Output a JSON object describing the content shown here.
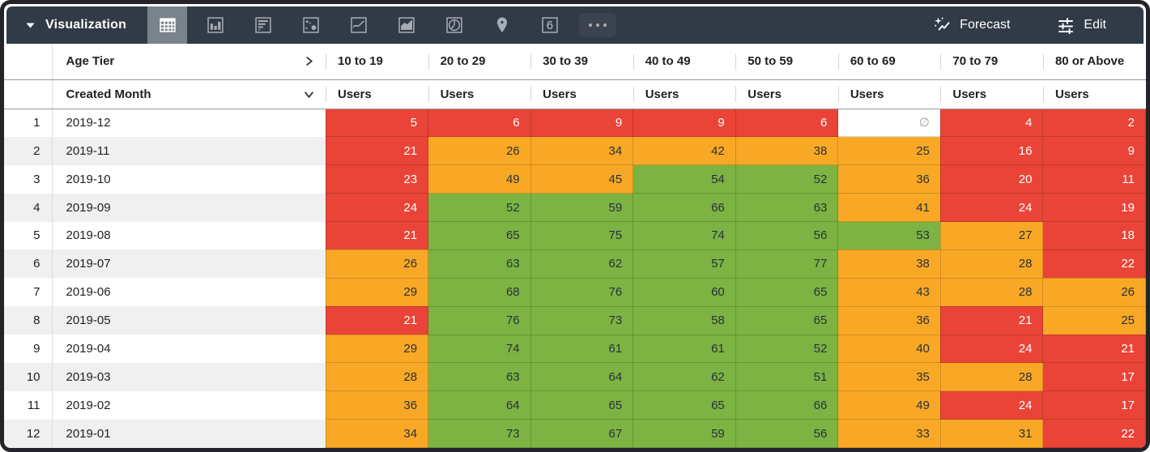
{
  "toolbar": {
    "caret": "▼",
    "title": "Visualization",
    "viz_types": [
      {
        "name": "table",
        "selected": true
      },
      {
        "name": "column-chart",
        "selected": false
      },
      {
        "name": "bar-chart",
        "selected": false
      },
      {
        "name": "scatter",
        "selected": false
      },
      {
        "name": "line-chart",
        "selected": false
      },
      {
        "name": "area-chart",
        "selected": false
      },
      {
        "name": "pie-chart",
        "selected": false
      },
      {
        "name": "map",
        "selected": false
      },
      {
        "name": "single-value",
        "selected": false,
        "glyph": "6"
      },
      {
        "name": "more",
        "selected": false
      }
    ],
    "forecast_label": "Forecast",
    "edit_label": "Edit"
  },
  "table": {
    "pivot_field": "Age Tier",
    "row_field": "Created Month",
    "measure": "Users",
    "null_symbol": "∅",
    "columns": [
      "10 to 19",
      "20 to 29",
      "30 to 39",
      "40 to 49",
      "50 to 59",
      "60 to 69",
      "70 to 79",
      "80 or Above"
    ],
    "rows": [
      {
        "index": "1",
        "month": "2019-12",
        "values": [
          "5",
          "6",
          "9",
          "9",
          "6",
          "∅",
          "4",
          "2"
        ],
        "levels": [
          "red",
          "red",
          "red",
          "red",
          "red",
          "null",
          "red",
          "red"
        ]
      },
      {
        "index": "2",
        "month": "2019-11",
        "values": [
          "21",
          "26",
          "34",
          "42",
          "38",
          "25",
          "16",
          "9"
        ],
        "levels": [
          "red",
          "orange",
          "orange",
          "orange",
          "orange",
          "orange",
          "red",
          "red"
        ]
      },
      {
        "index": "3",
        "month": "2019-10",
        "values": [
          "23",
          "49",
          "45",
          "54",
          "52",
          "36",
          "20",
          "11"
        ],
        "levels": [
          "red",
          "orange",
          "orange",
          "green",
          "green",
          "orange",
          "red",
          "red"
        ]
      },
      {
        "index": "4",
        "month": "2019-09",
        "values": [
          "24",
          "52",
          "59",
          "66",
          "63",
          "41",
          "24",
          "19"
        ],
        "levels": [
          "red",
          "green",
          "green",
          "green",
          "green",
          "orange",
          "red",
          "red"
        ]
      },
      {
        "index": "5",
        "month": "2019-08",
        "values": [
          "21",
          "65",
          "75",
          "74",
          "56",
          "53",
          "27",
          "18"
        ],
        "levels": [
          "red",
          "green",
          "green",
          "green",
          "green",
          "green",
          "orange",
          "red"
        ]
      },
      {
        "index": "6",
        "month": "2019-07",
        "values": [
          "26",
          "63",
          "62",
          "57",
          "77",
          "38",
          "28",
          "22"
        ],
        "levels": [
          "orange",
          "green",
          "green",
          "green",
          "green",
          "orange",
          "orange",
          "red"
        ]
      },
      {
        "index": "7",
        "month": "2019-06",
        "values": [
          "29",
          "68",
          "76",
          "60",
          "65",
          "43",
          "28",
          "26"
        ],
        "levels": [
          "orange",
          "green",
          "green",
          "green",
          "green",
          "orange",
          "orange",
          "orange"
        ]
      },
      {
        "index": "8",
        "month": "2019-05",
        "values": [
          "21",
          "76",
          "73",
          "58",
          "65",
          "36",
          "21",
          "25"
        ],
        "levels": [
          "red",
          "green",
          "green",
          "green",
          "green",
          "orange",
          "red",
          "orange"
        ]
      },
      {
        "index": "9",
        "month": "2019-04",
        "values": [
          "29",
          "74",
          "61",
          "61",
          "52",
          "40",
          "24",
          "21"
        ],
        "levels": [
          "orange",
          "green",
          "green",
          "green",
          "green",
          "orange",
          "red",
          "red"
        ]
      },
      {
        "index": "10",
        "month": "2019-03",
        "values": [
          "28",
          "63",
          "64",
          "62",
          "51",
          "35",
          "28",
          "17"
        ],
        "levels": [
          "orange",
          "green",
          "green",
          "green",
          "green",
          "orange",
          "orange",
          "red"
        ]
      },
      {
        "index": "11",
        "month": "2019-02",
        "values": [
          "36",
          "64",
          "65",
          "65",
          "66",
          "49",
          "24",
          "17"
        ],
        "levels": [
          "orange",
          "green",
          "green",
          "green",
          "green",
          "orange",
          "red",
          "red"
        ]
      },
      {
        "index": "12",
        "month": "2019-01",
        "values": [
          "34",
          "73",
          "67",
          "59",
          "56",
          "33",
          "31",
          "22"
        ],
        "levels": [
          "orange",
          "green",
          "green",
          "green",
          "green",
          "orange",
          "orange",
          "red"
        ]
      }
    ]
  },
  "colors": {
    "red": "#E94437",
    "orange": "#F9A825",
    "green": "#7CB342",
    "toolbar_bg": "#313A47",
    "selected_tile": "#7A828C",
    "frame": "#232329",
    "stripe": "#F0F0F0"
  }
}
